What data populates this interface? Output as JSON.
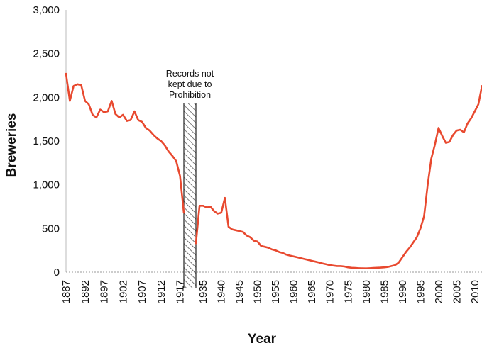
{
  "chart_data": {
    "type": "line",
    "xlabel": "Year",
    "ylabel": "Breweries",
    "ylim": [
      0,
      3000
    ],
    "yticks": [
      "0",
      "500",
      "1,000",
      "1,500",
      "2,000",
      "2,500",
      "3,000"
    ],
    "ytick_values": [
      0,
      500,
      1000,
      1500,
      2000,
      2500,
      3000
    ],
    "xticks": [
      "1887",
      "1892",
      "1897",
      "1902",
      "1907",
      "1912",
      "1917",
      "1935",
      "1940",
      "1945",
      "1950",
      "1955",
      "1960",
      "1965",
      "1970",
      "1975",
      "1980",
      "1985",
      "1990",
      "1995",
      "2000",
      "2005",
      "2010"
    ],
    "grid": false,
    "baseline_dashed": true,
    "line_color": "#e8492f",
    "annotation": {
      "lines": [
        "Records not",
        "kept due to",
        "Prohibition"
      ],
      "from_year": 1918,
      "to_year": 1933
    },
    "segments": [
      {
        "x": [
          1887,
          1888,
          1889,
          1890,
          1891,
          1892,
          1893,
          1894,
          1895,
          1896,
          1897,
          1898,
          1899,
          1900,
          1901,
          1902,
          1903,
          1904,
          1905,
          1906,
          1907,
          1908,
          1909,
          1910,
          1911,
          1912,
          1913,
          1914,
          1915,
          1916,
          1917,
          1918
        ],
        "y": [
          2270,
          1960,
          2130,
          2150,
          2140,
          1960,
          1920,
          1800,
          1770,
          1860,
          1830,
          1840,
          1960,
          1810,
          1770,
          1800,
          1730,
          1740,
          1840,
          1740,
          1720,
          1650,
          1620,
          1570,
          1530,
          1500,
          1450,
          1380,
          1330,
          1270,
          1100,
          680
        ]
      },
      {
        "x": [
          1933,
          1934,
          1935,
          1936,
          1937,
          1938,
          1939,
          1940,
          1941,
          1942,
          1943,
          1944,
          1945,
          1946,
          1947,
          1948,
          1949,
          1950,
          1951,
          1952,
          1953,
          1954,
          1955,
          1956,
          1957,
          1958,
          1959,
          1960,
          1961,
          1962,
          1963,
          1964,
          1965,
          1966,
          1967,
          1968,
          1969,
          1970,
          1971,
          1972,
          1973,
          1974,
          1975,
          1976,
          1977,
          1978,
          1979,
          1980,
          1981,
          1982,
          1983,
          1984,
          1985,
          1986,
          1987,
          1988,
          1989,
          1990,
          1991,
          1992,
          1993,
          1994,
          1995,
          1996,
          1997,
          1998,
          1999,
          2000,
          2001,
          2002,
          2003,
          2004,
          2005,
          2006,
          2007,
          2008,
          2009,
          2010,
          2011,
          2012
        ],
        "y": [
          330,
          760,
          760,
          740,
          750,
          700,
          670,
          680,
          850,
          520,
          490,
          480,
          470,
          460,
          420,
          400,
          360,
          350,
          300,
          290,
          280,
          260,
          250,
          230,
          220,
          200,
          190,
          180,
          170,
          160,
          150,
          140,
          130,
          120,
          110,
          100,
          90,
          80,
          75,
          70,
          70,
          65,
          55,
          50,
          48,
          45,
          44,
          43,
          45,
          48,
          50,
          52,
          55,
          60,
          70,
          80,
          110,
          170,
          230,
          280,
          340,
          400,
          500,
          640,
          1000,
          1300,
          1460,
          1650,
          1560,
          1480,
          1490,
          1570,
          1620,
          1630,
          1600,
          1700,
          1760,
          1840,
          1920,
          2130
        ]
      }
    ]
  }
}
